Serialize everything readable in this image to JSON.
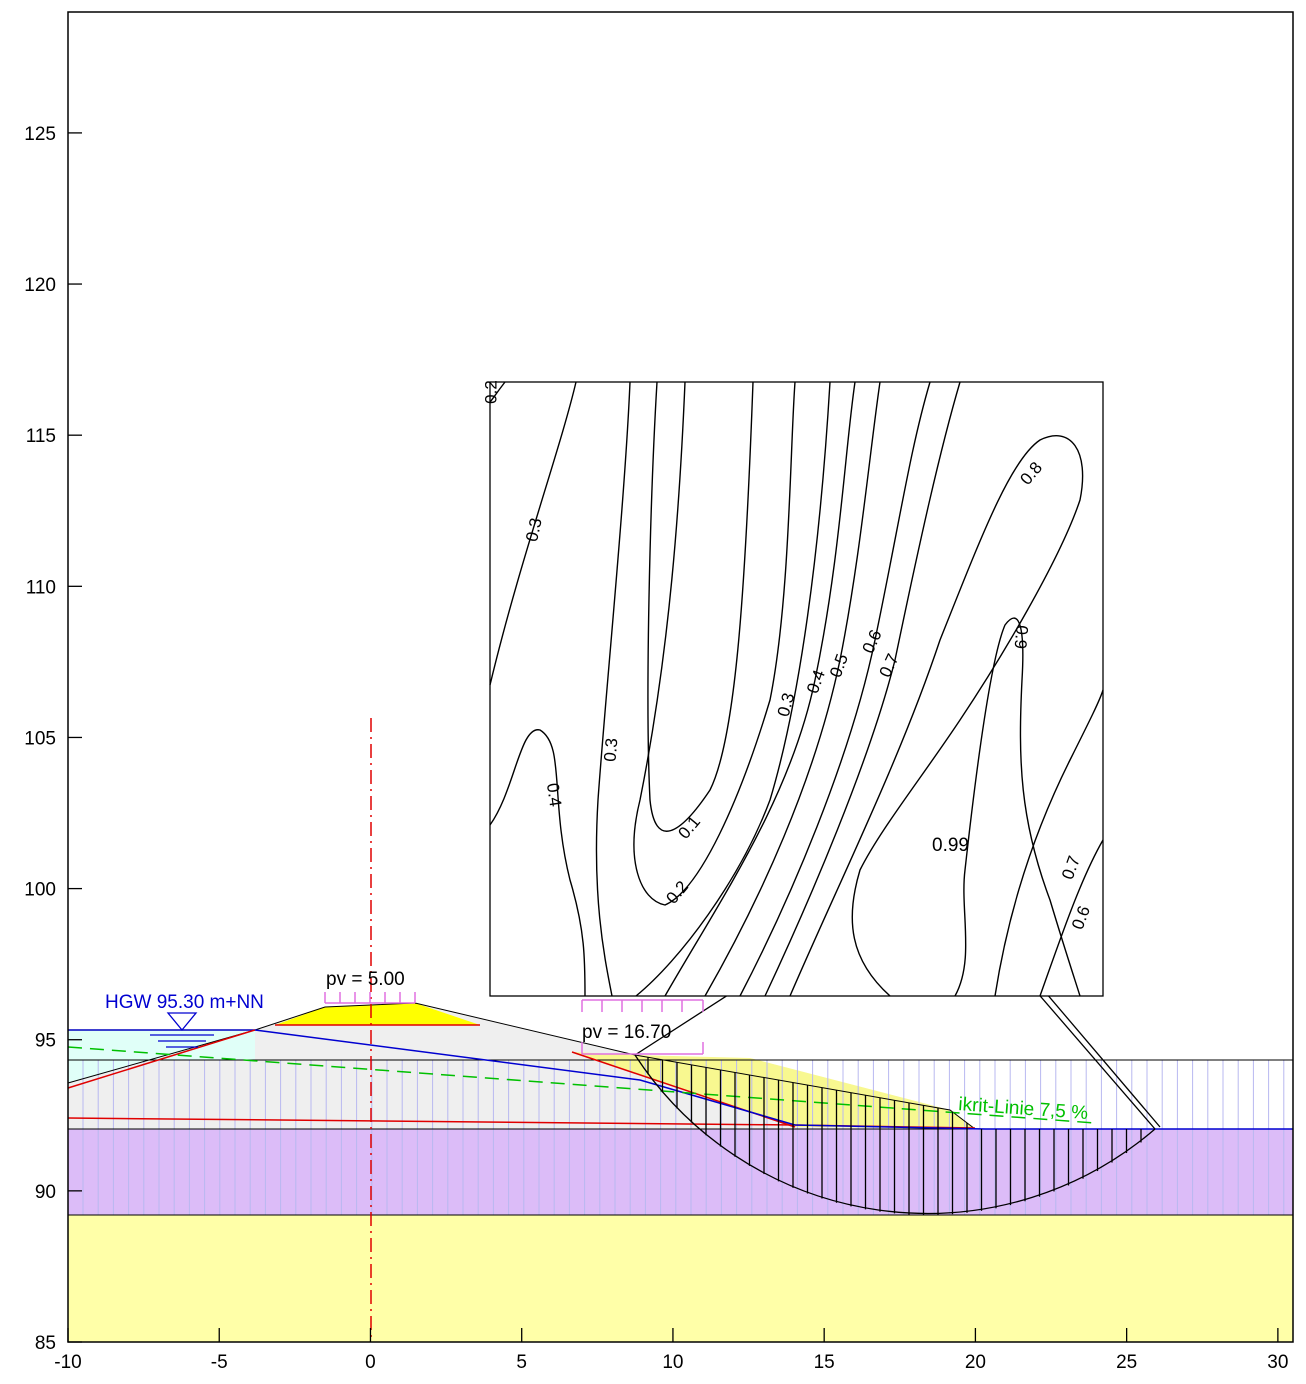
{
  "axes": {
    "xlim": [
      -10,
      30.5
    ],
    "ylim": [
      85,
      129
    ],
    "xticks": [
      -10,
      -5,
      0,
      5,
      10,
      15,
      20,
      25,
      30
    ],
    "yticks": [
      85,
      90,
      95,
      100,
      105,
      110,
      115,
      120,
      125
    ]
  },
  "annotations": {
    "load_crest": "pv = 5.00",
    "load_berm": "pv = 16.70",
    "groundwater": "HGW  95.30 m+NN",
    "ikrit": "ikrit-Linie 7,5 %",
    "min_factor": "0.99"
  },
  "contour_labels": [
    "0.2",
    "0.3",
    "0.3",
    "0.4",
    "0.1",
    "0.2",
    "0.3",
    "0.4",
    "0.5",
    "0.6",
    "0.7",
    "0.8",
    "0.9",
    "0.7",
    "0.6"
  ]
}
